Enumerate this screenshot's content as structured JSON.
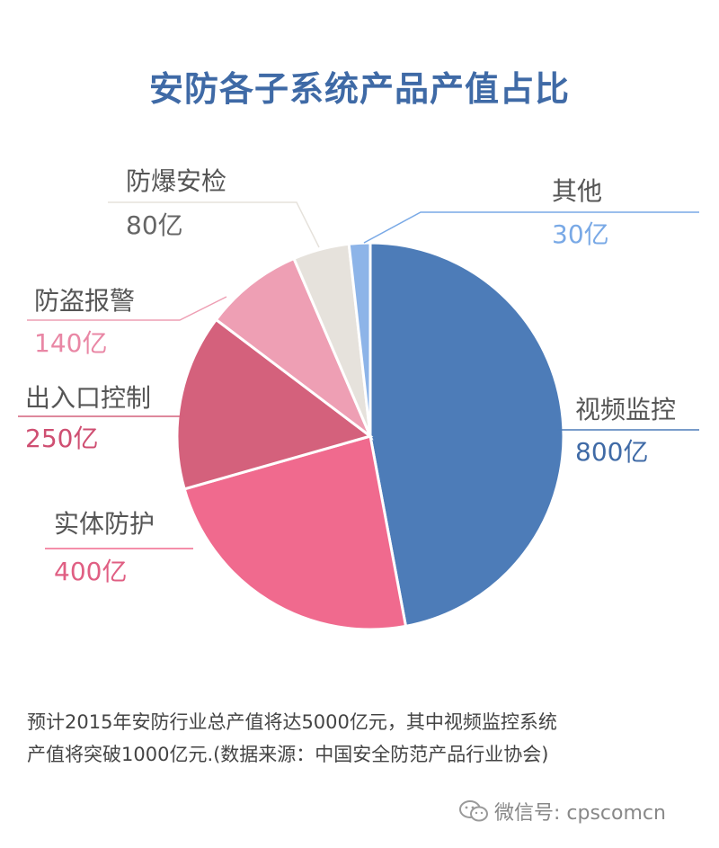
{
  "title": "安防各子系统产品产值占比",
  "chart_data": {
    "type": "pie",
    "title": "安防各子系统产品产值占比",
    "slices": [
      {
        "name": "视频监控",
        "value": 800,
        "label": "800亿",
        "color": "#4d7cb8"
      },
      {
        "name": "实体防护",
        "value": 400,
        "label": "400亿",
        "color": "#f06a8e"
      },
      {
        "name": "出入口控制",
        "value": 250,
        "label": "250亿",
        "color": "#d4617c"
      },
      {
        "name": "防盗报警",
        "value": 140,
        "label": "140亿",
        "color": "#ee9fb4"
      },
      {
        "name": "防爆安检",
        "value": 80,
        "label": "80亿",
        "color": "#e6e2dc"
      },
      {
        "name": "其他",
        "value": 30,
        "label": "30亿",
        "color": "#8db4e8"
      }
    ],
    "label_colors": {
      "视频监控": "#3f6aa6",
      "实体防护": "#e05f83",
      "出入口控制": "#cf4f72",
      "防盗报警": "#e987a5",
      "防爆安检": "#666666",
      "其他": "#79a9e6"
    }
  },
  "footnote": {
    "line1": "预计2015年安防行业总产值将达5000亿元，其中视频监控系统",
    "line2": "产值将突破1000亿元.(数据来源：中国安全防范产品行业协会)"
  },
  "wechat": {
    "label": "微信号: cpscomcn",
    "icon": "wechat-icon"
  }
}
